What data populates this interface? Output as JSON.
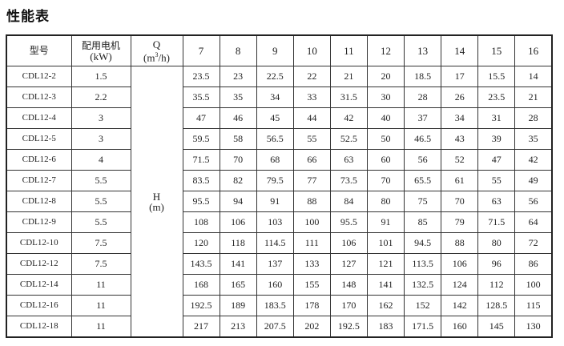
{
  "title": "性能表",
  "header": {
    "model": "型号",
    "motor_line1": "配用电机",
    "motor_line2": "(kW)",
    "q_line1": "Q",
    "q_unit_pre": "(m",
    "q_unit_sup": "3",
    "q_unit_post": "/h)",
    "flows": [
      "7",
      "8",
      "9",
      "10",
      "11",
      "12",
      "13",
      "14",
      "15",
      "16"
    ]
  },
  "h_label_line1": "H",
  "h_label_line2": "(m)",
  "rows": [
    {
      "model": "CDL12-2",
      "kw": "1.5",
      "h": [
        "23.5",
        "23",
        "22.5",
        "22",
        "21",
        "20",
        "18.5",
        "17",
        "15.5",
        "14"
      ]
    },
    {
      "model": "CDL12-3",
      "kw": "2.2",
      "h": [
        "35.5",
        "35",
        "34",
        "33",
        "31.5",
        "30",
        "28",
        "26",
        "23.5",
        "21"
      ]
    },
    {
      "model": "CDL12-4",
      "kw": "3",
      "h": [
        "47",
        "46",
        "45",
        "44",
        "42",
        "40",
        "37",
        "34",
        "31",
        "28"
      ]
    },
    {
      "model": "CDL12-5",
      "kw": "3",
      "h": [
        "59.5",
        "58",
        "56.5",
        "55",
        "52.5",
        "50",
        "46.5",
        "43",
        "39",
        "35"
      ]
    },
    {
      "model": "CDL12-6",
      "kw": "4",
      "h": [
        "71.5",
        "70",
        "68",
        "66",
        "63",
        "60",
        "56",
        "52",
        "47",
        "42"
      ]
    },
    {
      "model": "CDL12-7",
      "kw": "5.5",
      "h": [
        "83.5",
        "82",
        "79.5",
        "77",
        "73.5",
        "70",
        "65.5",
        "61",
        "55",
        "49"
      ]
    },
    {
      "model": "CDL12-8",
      "kw": "5.5",
      "h": [
        "95.5",
        "94",
        "91",
        "88",
        "84",
        "80",
        "75",
        "70",
        "63",
        "56"
      ]
    },
    {
      "model": "CDL12-9",
      "kw": "5.5",
      "h": [
        "108",
        "106",
        "103",
        "100",
        "95.5",
        "91",
        "85",
        "79",
        "71.5",
        "64"
      ]
    },
    {
      "model": "CDL12-10",
      "kw": "7.5",
      "h": [
        "120",
        "118",
        "114.5",
        "111",
        "106",
        "101",
        "94.5",
        "88",
        "80",
        "72"
      ]
    },
    {
      "model": "CDL12-12",
      "kw": "7.5",
      "h": [
        "143.5",
        "141",
        "137",
        "133",
        "127",
        "121",
        "113.5",
        "106",
        "96",
        "86"
      ]
    },
    {
      "model": "CDL12-14",
      "kw": "11",
      "h": [
        "168",
        "165",
        "160",
        "155",
        "148",
        "141",
        "132.5",
        "124",
        "112",
        "100"
      ]
    },
    {
      "model": "CDL12-16",
      "kw": "11",
      "h": [
        "192.5",
        "189",
        "183.5",
        "178",
        "170",
        "162",
        "152",
        "142",
        "128.5",
        "115"
      ]
    },
    {
      "model": "CDL12-18",
      "kw": "11",
      "h": [
        "217",
        "213",
        "207.5",
        "202",
        "192.5",
        "183",
        "171.5",
        "160",
        "145",
        "130"
      ]
    }
  ]
}
